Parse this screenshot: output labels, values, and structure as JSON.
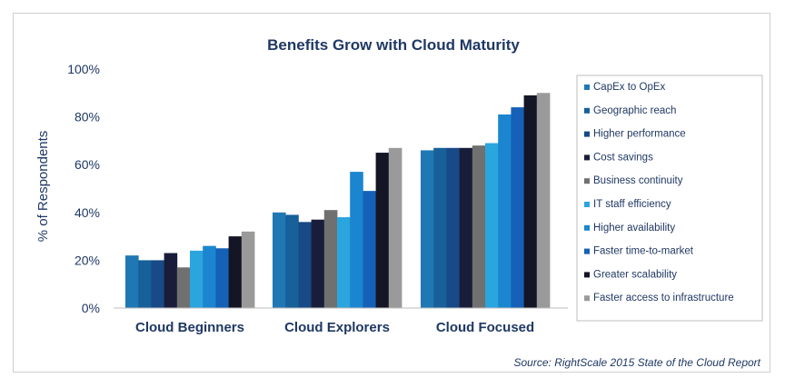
{
  "chart_data": {
    "type": "bar",
    "title": "Benefits Grow with Cloud Maturity",
    "xlabel": "",
    "ylabel": "% of Respondents",
    "ylim": [
      0,
      100
    ],
    "yticks": [
      0,
      20,
      40,
      60,
      80,
      100
    ],
    "ytick_labels": [
      "0%",
      "20%",
      "40%",
      "60%",
      "80%",
      "100%"
    ],
    "grid": false,
    "legend_position": "right",
    "categories": [
      "Cloud Beginners",
      "Cloud Explorers",
      "Cloud Focused"
    ],
    "series": [
      {
        "name": "CapEx to OpEx",
        "color": "#1f78b4",
        "values": [
          22,
          40,
          66
        ]
      },
      {
        "name": "Geographic reach",
        "color": "#17609a",
        "values": [
          20,
          39,
          67
        ]
      },
      {
        "name": "Higher performance",
        "color": "#174a86",
        "values": [
          20,
          36,
          67
        ]
      },
      {
        "name": "Cost savings",
        "color": "#1a1d3a",
        "values": [
          23,
          37,
          67
        ]
      },
      {
        "name": "Business continuity",
        "color": "#707070",
        "values": [
          17,
          41,
          68
        ]
      },
      {
        "name": "IT staff efficiency",
        "color": "#2aa5dd",
        "values": [
          24,
          38,
          69
        ]
      },
      {
        "name": "Higher availability",
        "color": "#1b86cf",
        "values": [
          26,
          57,
          81
        ]
      },
      {
        "name": "Faster time-to-market",
        "color": "#1561b8",
        "values": [
          25,
          49,
          84
        ]
      },
      {
        "name": "Greater scalability",
        "color": "#141626",
        "values": [
          30,
          65,
          89
        ]
      },
      {
        "name": "Faster access to infrastructure",
        "color": "#9a9a9a",
        "values": [
          32,
          67,
          90
        ]
      }
    ],
    "source": "Source: RightScale 2015 State of the Cloud Report"
  }
}
